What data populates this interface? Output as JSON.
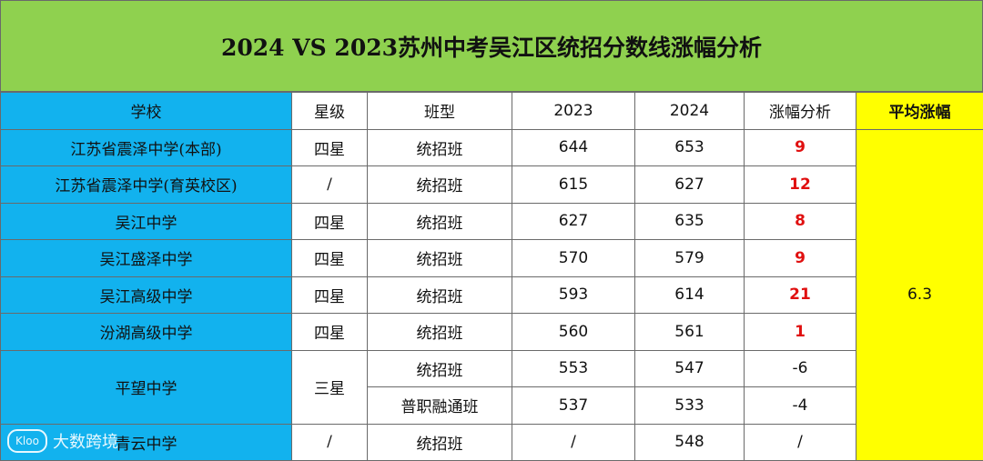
{
  "title": "2024 VS 2023苏州中考吴江区统招分数线涨幅分析",
  "headers": {
    "school": "学校",
    "star": "星级",
    "class_type": "班型",
    "y2023": "2023",
    "y2024": "2024",
    "change": "涨幅分析",
    "avg": "平均涨幅"
  },
  "rows": [
    {
      "school": "江苏省震泽中学(本部)",
      "star": "四星",
      "class_type": "统招班",
      "y2023": "644",
      "y2024": "653",
      "change": "9"
    },
    {
      "school": "江苏省震泽中学(育英校区)",
      "star": "/",
      "class_type": "统招班",
      "y2023": "615",
      "y2024": "627",
      "change": "12"
    },
    {
      "school": "吴江中学",
      "star": "四星",
      "class_type": "统招班",
      "y2023": "627",
      "y2024": "635",
      "change": "8"
    },
    {
      "school": "吴江盛泽中学",
      "star": "四星",
      "class_type": "统招班",
      "y2023": "570",
      "y2024": "579",
      "change": "9"
    },
    {
      "school": "吴江高级中学",
      "star": "四星",
      "class_type": "统招班",
      "y2023": "593",
      "y2024": "614",
      "change": "21"
    },
    {
      "school": "汾湖高级中学",
      "star": "四星",
      "class_type": "统招班",
      "y2023": "560",
      "y2024": "561",
      "change": "1"
    },
    {
      "school": "平望中学",
      "star": "三星",
      "class_type": "统招班",
      "y2023": "553",
      "y2024": "547",
      "change": "-6"
    },
    {
      "school": "平望中学",
      "star": "三星",
      "class_type": "普职融通班",
      "y2023": "537",
      "y2024": "533",
      "change": "-4"
    },
    {
      "school": "青云中学",
      "star": "/",
      "class_type": "统招班",
      "y2023": "/",
      "y2024": "548",
      "change": "/"
    }
  ],
  "average": "6.3",
  "brand": {
    "mark": "Kloo",
    "name": "大数跨境"
  },
  "colors": {
    "title_bg": "#8fd14f",
    "school_bg": "#12b2ee",
    "avg_bg": "#ffff00",
    "increase": "#e01010"
  }
}
